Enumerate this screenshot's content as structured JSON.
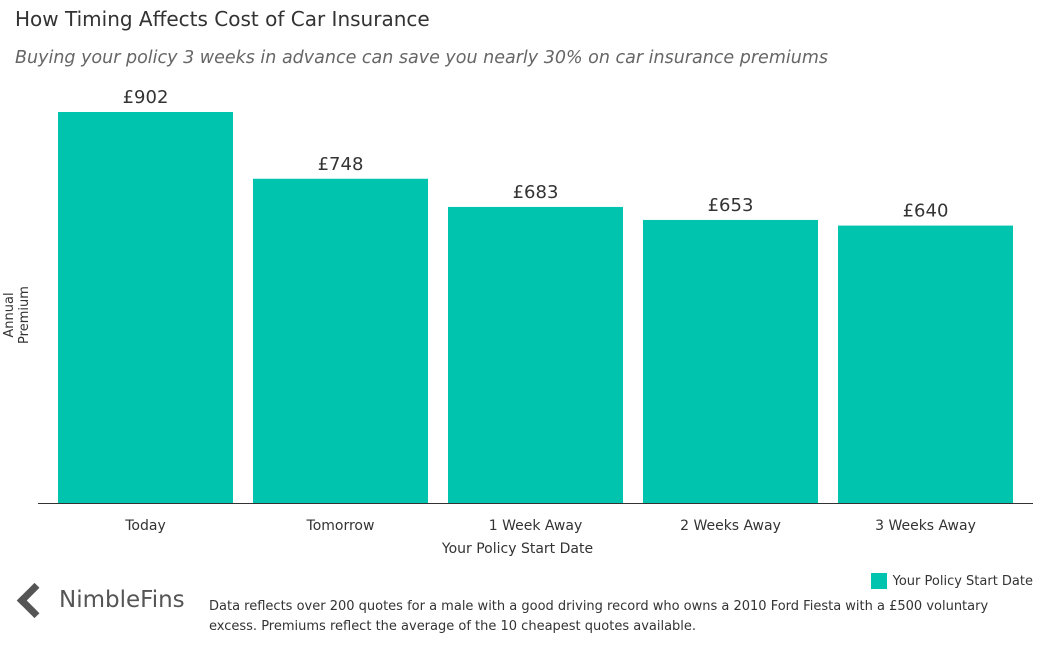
{
  "title": "How Timing Affects Cost of Car Insurance",
  "subtitle": "Buying your policy 3 weeks in advance can save you nearly 30% on car insurance premiums",
  "chart_data": {
    "type": "bar",
    "categories": [
      "Today",
      "Tomorrow",
      "1 Week Away",
      "2 Weeks Away",
      "3 Weeks Away"
    ],
    "values": [
      902,
      748,
      683,
      653,
      640
    ],
    "data_labels": [
      "£902",
      "£748",
      "£683",
      "£653",
      "£640"
    ],
    "xlabel": "Your Policy Start Date",
    "ylabel": "Annual Premium",
    "ylim": [
      0,
      902
    ],
    "grid": false,
    "legend": {
      "position": "bottom-right",
      "entries": [
        "Your Policy Start Date"
      ]
    },
    "color": "#00C4AE"
  },
  "footer": {
    "logo_text": "NimbleFins",
    "note": "Data reflects over 200 quotes for a male with a good driving record who owns a 2010 Ford Fiesta with a £500 voluntary excess. Premiums reflect the average of the 10 cheapest quotes available."
  }
}
